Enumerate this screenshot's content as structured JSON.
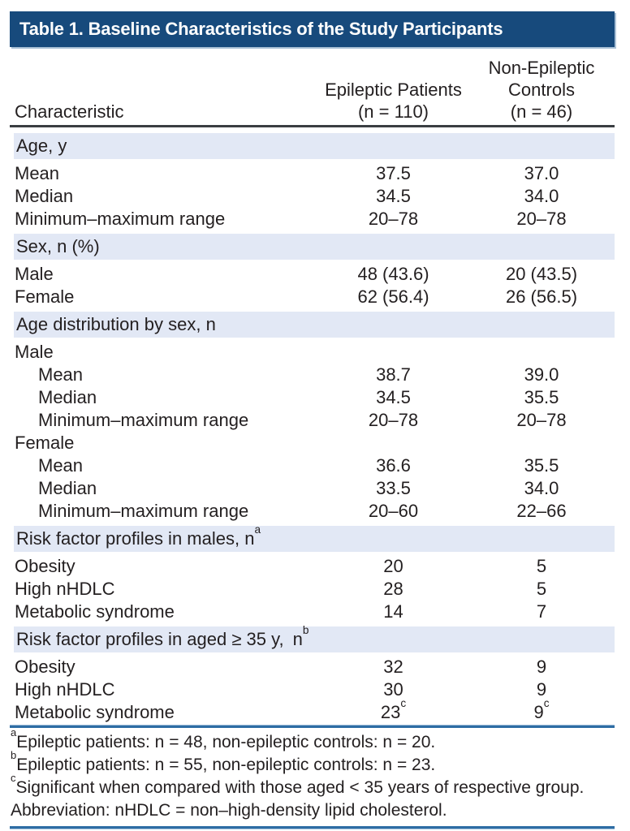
{
  "colors": {
    "title_bar": "#174A7C",
    "title_text": "#FFFFFF",
    "section_band": "#E2E8F5",
    "rule_blue": "#2E6DA4",
    "rule_dark": "#3A3E42",
    "body_text": "#231F20"
  },
  "title": "Table 1. Baseline Characteristics of the Study Participants",
  "header": {
    "characteristic": "Characteristic",
    "epileptic": {
      "line1": "Epileptic Patients",
      "line2": "(n = 110)"
    },
    "controls": {
      "line1": "Non-Epileptic",
      "line2": "Controls",
      "line3": "(n = 46)"
    }
  },
  "rows": [
    {
      "t": "section",
      "label": "Age, y"
    },
    {
      "t": "data",
      "label": "Mean",
      "v1": "37.5",
      "v2": "37.0"
    },
    {
      "t": "data",
      "label": "Median",
      "v1": "34.5",
      "v2": "34.0"
    },
    {
      "t": "data",
      "label": "Minimum–maximum range",
      "v1": "20–78",
      "v2": "20–78"
    },
    {
      "t": "section",
      "label": "Sex, n (%)"
    },
    {
      "t": "data",
      "label": "Male",
      "v1": "48 (43.6)",
      "v2": "20 (43.5)"
    },
    {
      "t": "data",
      "label": "Female",
      "v1": "62 (56.4)",
      "v2": "26 (56.5)"
    },
    {
      "t": "section",
      "label": "Age distribution by sex, n"
    },
    {
      "t": "group",
      "label": "Male"
    },
    {
      "t": "sub",
      "label": "Mean",
      "v1": "38.7",
      "v2": "39.0"
    },
    {
      "t": "sub",
      "label": "Median",
      "v1": "34.5",
      "v2": "35.5"
    },
    {
      "t": "sub",
      "label": "Minimum–maximum range",
      "v1": "20–78",
      "v2": "20–78"
    },
    {
      "t": "group",
      "label": "Female"
    },
    {
      "t": "sub",
      "label": "Mean",
      "v1": "36.6",
      "v2": "35.5"
    },
    {
      "t": "sub",
      "label": "Median",
      "v1": "33.5",
      "v2": "34.0"
    },
    {
      "t": "sub",
      "label": "Minimum–maximum range",
      "v1": "20–60",
      "v2": "22–66"
    },
    {
      "t": "section",
      "label": "Risk factor profiles in males, n",
      "sup": "a"
    },
    {
      "t": "data",
      "label": "Obesity",
      "v1": "20",
      "v2": "5"
    },
    {
      "t": "data",
      "label": "High nHDLC",
      "v1": "28",
      "v2": "5"
    },
    {
      "t": "data",
      "label": "Metabolic syndrome",
      "v1": "14",
      "v2": "7"
    },
    {
      "t": "section",
      "label": "Risk factor profiles in aged ≥ 35 y, n",
      "sup": "b"
    },
    {
      "t": "data",
      "label": "Obesity",
      "v1": "32",
      "v2": "9"
    },
    {
      "t": "data",
      "label": "High nHDLC",
      "v1": "30",
      "v2": "9"
    },
    {
      "t": "data",
      "label": "Metabolic syndrome",
      "v1": "23",
      "v1s": "c",
      "v2": "9",
      "v2s": "c"
    }
  ],
  "footnotes": [
    {
      "sup": "a",
      "text": "Epileptic patients: n = 48, non-epileptic controls: n = 20."
    },
    {
      "sup": "b",
      "text": "Epileptic patients: n = 55, non-epileptic controls: n = 23."
    },
    {
      "sup": "c",
      "text": "Significant when compared with those aged < 35 years of respective group."
    },
    {
      "sup": "",
      "text": "Abbreviation: nHDLC = non–high-density lipid cholesterol."
    }
  ]
}
